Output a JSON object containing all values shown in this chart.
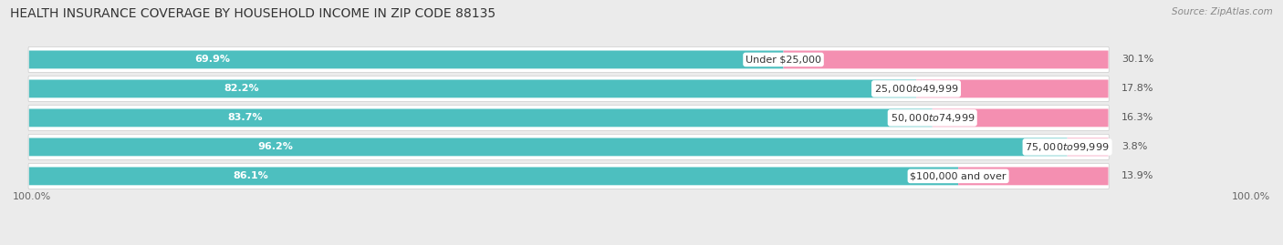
{
  "title": "HEALTH INSURANCE COVERAGE BY HOUSEHOLD INCOME IN ZIP CODE 88135",
  "source": "Source: ZipAtlas.com",
  "categories": [
    "Under $25,000",
    "$25,000 to $49,999",
    "$50,000 to $74,999",
    "$75,000 to $99,999",
    "$100,000 and over"
  ],
  "with_coverage": [
    69.9,
    82.2,
    83.7,
    96.2,
    86.1
  ],
  "without_coverage": [
    30.1,
    17.8,
    16.3,
    3.8,
    13.9
  ],
  "color_with": "#4dbfbf",
  "color_without": "#f48fb1",
  "bg_color": "#ebebeb",
  "bar_bg": "#ffffff",
  "title_fontsize": 10,
  "label_fontsize": 8,
  "tick_fontsize": 8,
  "legend_fontsize": 8.5,
  "source_fontsize": 7.5
}
